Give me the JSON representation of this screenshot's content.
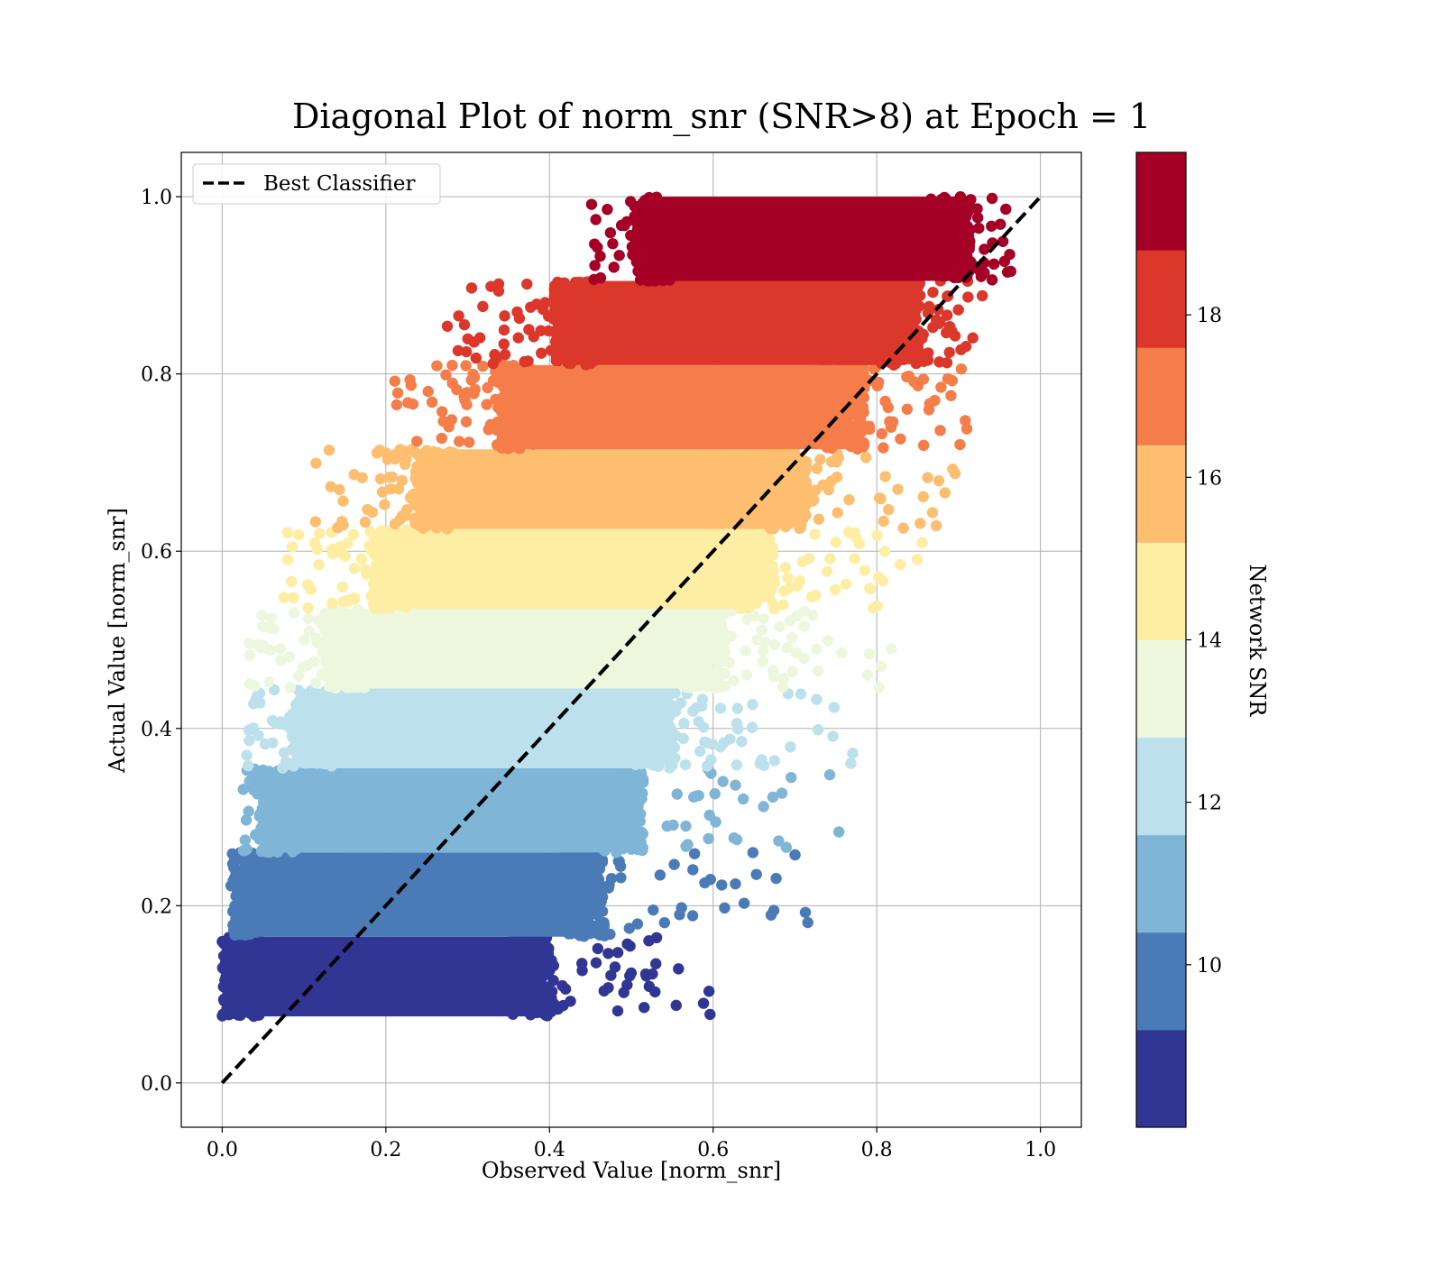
{
  "chart_data": {
    "type": "scatter",
    "title": "Diagonal Plot of norm_snr (SNR>8) at Epoch = 1",
    "xlabel": "Observed Value [norm_snr]",
    "ylabel": "Actual Value [norm_snr]",
    "xlim": [
      -0.05,
      1.05
    ],
    "ylim": [
      -0.05,
      1.05
    ],
    "x_ticks": [
      0.0,
      0.2,
      0.4,
      0.6,
      0.8,
      1.0
    ],
    "y_ticks": [
      0.0,
      0.2,
      0.4,
      0.6,
      0.8,
      1.0
    ],
    "x_tick_labels": [
      "0.0",
      "0.2",
      "0.4",
      "0.6",
      "0.8",
      "1.0"
    ],
    "y_tick_labels": [
      "0.0",
      "0.2",
      "0.4",
      "0.6",
      "0.8",
      "1.0"
    ],
    "grid": true,
    "legend": {
      "position": "upper-left",
      "entries": [
        {
          "label": "Best Classifier",
          "style": "black dashed line"
        }
      ]
    },
    "reference_line": {
      "name": "Best Classifier",
      "x": [
        0.0,
        1.0
      ],
      "y": [
        0.0,
        1.0
      ],
      "color": "#000000"
    },
    "colorbar": {
      "label": "Network SNR",
      "colormap": "RdYlBu_r",
      "range": [
        8,
        20
      ],
      "ticks": [
        10,
        12,
        14,
        16,
        18
      ],
      "tick_labels": [
        "10",
        "12",
        "14",
        "16",
        "18"
      ],
      "bins": [
        {
          "snr_min": 8,
          "snr_max": 9.2,
          "color": "#313695"
        },
        {
          "snr_min": 9.2,
          "snr_max": 10.4,
          "color": "#4a7bb7"
        },
        {
          "snr_min": 10.4,
          "snr_max": 11.6,
          "color": "#7fb5d6"
        },
        {
          "snr_min": 11.6,
          "snr_max": 12.8,
          "color": "#bde1ec"
        },
        {
          "snr_min": 12.8,
          "snr_max": 14.0,
          "color": "#edf7de"
        },
        {
          "snr_min": 14.0,
          "snr_max": 15.2,
          "color": "#feeea4"
        },
        {
          "snr_min": 15.2,
          "snr_max": 16.4,
          "color": "#fdbe70"
        },
        {
          "snr_min": 16.4,
          "snr_max": 17.6,
          "color": "#f57d4a"
        },
        {
          "snr_min": 17.6,
          "snr_max": 18.8,
          "color": "#db382b"
        },
        {
          "snr_min": 18.8,
          "snr_max": 20.0,
          "color": "#a50026"
        }
      ]
    },
    "scatter_bands": [
      {
        "y_range": [
          0.075,
          0.165
        ],
        "x_core": [
          0.015,
          0.39
        ],
        "x_tail": [
          0.0,
          0.62
        ],
        "color": "#313695"
      },
      {
        "y_range": [
          0.165,
          0.26
        ],
        "x_core": [
          0.03,
          0.45
        ],
        "x_tail": [
          0.01,
          0.72
        ],
        "color": "#4a7bb7"
      },
      {
        "y_range": [
          0.26,
          0.355
        ],
        "x_core": [
          0.06,
          0.5
        ],
        "x_tail": [
          0.02,
          0.76
        ],
        "color": "#7fb5d6"
      },
      {
        "y_range": [
          0.355,
          0.445
        ],
        "x_core": [
          0.1,
          0.54
        ],
        "x_tail": [
          0.03,
          0.78
        ],
        "color": "#bde1ec"
      },
      {
        "y_range": [
          0.445,
          0.535
        ],
        "x_core": [
          0.14,
          0.6
        ],
        "x_tail": [
          0.03,
          0.82
        ],
        "color": "#edf7de"
      },
      {
        "y_range": [
          0.535,
          0.625
        ],
        "x_core": [
          0.2,
          0.66
        ],
        "x_tail": [
          0.07,
          0.86
        ],
        "color": "#feeea4"
      },
      {
        "y_range": [
          0.625,
          0.715
        ],
        "x_core": [
          0.25,
          0.7
        ],
        "x_tail": [
          0.11,
          0.9
        ],
        "color": "#fdbe70"
      },
      {
        "y_range": [
          0.715,
          0.81
        ],
        "x_core": [
          0.35,
          0.77
        ],
        "x_tail": [
          0.21,
          0.92
        ],
        "color": "#f57d4a"
      },
      {
        "y_range": [
          0.81,
          0.905
        ],
        "x_core": [
          0.42,
          0.84
        ],
        "x_tail": [
          0.27,
          0.93
        ],
        "color": "#db382b"
      },
      {
        "y_range": [
          0.905,
          1.0
        ],
        "x_core": [
          0.52,
          0.9
        ],
        "x_tail": [
          0.45,
          0.97
        ],
        "color": "#a50026"
      }
    ]
  }
}
